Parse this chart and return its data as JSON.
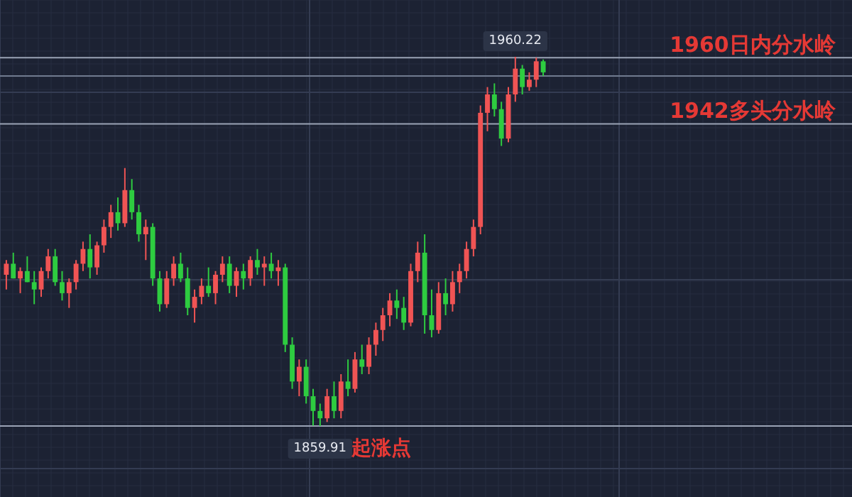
{
  "chart_data": {
    "type": "candlestick",
    "grid": true,
    "categories": [
      null,
      null,
      null,
      null,
      null,
      null,
      null,
      null,
      null,
      null,
      null,
      null,
      null,
      null,
      null,
      null,
      null,
      null,
      null,
      null,
      null,
      null,
      null,
      null,
      null,
      null,
      null,
      null,
      null,
      null,
      null,
      null,
      null,
      null,
      null,
      null,
      null,
      null,
      null,
      null,
      null,
      null,
      null,
      null,
      null,
      null,
      null,
      null,
      null,
      null,
      null,
      null,
      null,
      null,
      null,
      null,
      null,
      null,
      null,
      null,
      null,
      null,
      null,
      null,
      null,
      null,
      null,
      null,
      null,
      null,
      null,
      null,
      null,
      null,
      null,
      null,
      null,
      null
    ],
    "ohlc": [
      [
        1901,
        1905,
        1897,
        1904
      ],
      [
        1904,
        1907,
        1900,
        1900
      ],
      [
        1900,
        1903,
        1896,
        1902
      ],
      [
        1902,
        1906,
        1899,
        1899
      ],
      [
        1899,
        1902,
        1893,
        1897
      ],
      [
        1897,
        1903,
        1895,
        1902
      ],
      [
        1902,
        1908,
        1900,
        1906
      ],
      [
        1906,
        1908,
        1898,
        1899
      ],
      [
        1899,
        1902,
        1894,
        1896
      ],
      [
        1896,
        1900,
        1892,
        1899
      ],
      [
        1899,
        1905,
        1897,
        1904
      ],
      [
        1904,
        1910,
        1902,
        1908
      ],
      [
        1908,
        1912,
        1900,
        1903
      ],
      [
        1903,
        1910,
        1901,
        1909
      ],
      [
        1909,
        1916,
        1907,
        1914
      ],
      [
        1914,
        1920,
        1911,
        1918
      ],
      [
        1918,
        1922,
        1913,
        1915
      ],
      [
        1915,
        1930,
        1914,
        1924
      ],
      [
        1924,
        1927,
        1916,
        1918
      ],
      [
        1918,
        1920,
        1910,
        1912
      ],
      [
        1912,
        1916,
        1905,
        1914
      ],
      [
        1914,
        1915,
        1898,
        1900
      ],
      [
        1900,
        1902,
        1891,
        1893
      ],
      [
        1893,
        1902,
        1892,
        1900
      ],
      [
        1900,
        1906,
        1898,
        1904
      ],
      [
        1904,
        1907,
        1899,
        1900
      ],
      [
        1900,
        1903,
        1890,
        1892
      ],
      [
        1892,
        1897,
        1888,
        1895
      ],
      [
        1895,
        1900,
        1893,
        1898
      ],
      [
        1898,
        1903,
        1895,
        1896
      ],
      [
        1896,
        1902,
        1893,
        1901
      ],
      [
        1901,
        1906,
        1899,
        1904
      ],
      [
        1904,
        1906,
        1896,
        1898
      ],
      [
        1898,
        1903,
        1895,
        1902
      ],
      [
        1902,
        1904,
        1897,
        1900
      ],
      [
        1900,
        1906,
        1898,
        1905
      ],
      [
        1905,
        1908,
        1901,
        1903
      ],
      [
        1903,
        1906,
        1898,
        1904
      ],
      [
        1904,
        1907,
        1900,
        1902
      ],
      [
        1902,
        1905,
        1898,
        1903
      ],
      [
        1903,
        1904,
        1880,
        1882
      ],
      [
        1882,
        1884,
        1870,
        1872
      ],
      [
        1872,
        1878,
        1868,
        1876
      ],
      [
        1876,
        1878,
        1866,
        1868
      ],
      [
        1868,
        1870,
        1860,
        1864
      ],
      [
        1864,
        1866,
        1859.91,
        1862
      ],
      [
        1862,
        1870,
        1861,
        1868
      ],
      [
        1868,
        1872,
        1862,
        1864
      ],
      [
        1864,
        1874,
        1862,
        1872
      ],
      [
        1872,
        1878,
        1868,
        1870
      ],
      [
        1870,
        1880,
        1869,
        1878
      ],
      [
        1878,
        1882,
        1874,
        1876
      ],
      [
        1876,
        1884,
        1874,
        1882
      ],
      [
        1882,
        1888,
        1879,
        1886
      ],
      [
        1886,
        1892,
        1883,
        1890
      ],
      [
        1890,
        1896,
        1887,
        1894
      ],
      [
        1894,
        1897,
        1889,
        1892
      ],
      [
        1892,
        1895,
        1886,
        1888
      ],
      [
        1888,
        1904,
        1887,
        1902
      ],
      [
        1902,
        1910,
        1899,
        1907
      ],
      [
        1907,
        1912,
        1885,
        1890
      ],
      [
        1890,
        1897,
        1884,
        1886
      ],
      [
        1886,
        1899,
        1885,
        1896
      ],
      [
        1896,
        1900,
        1890,
        1893
      ],
      [
        1893,
        1902,
        1891,
        1899
      ],
      [
        1899,
        1904,
        1896,
        1902
      ],
      [
        1902,
        1910,
        1900,
        1908
      ],
      [
        1908,
        1916,
        1906,
        1914
      ],
      [
        1914,
        1947,
        1912,
        1945
      ],
      [
        1945,
        1952,
        1940,
        1950
      ],
      [
        1950,
        1953,
        1944,
        1946
      ],
      [
        1946,
        1948,
        1936,
        1938
      ],
      [
        1938,
        1952,
        1937,
        1950
      ],
      [
        1950,
        1960.22,
        1948,
        1957
      ],
      [
        1957,
        1958,
        1950,
        1952
      ],
      [
        1952,
        1956,
        1951,
        1954
      ],
      [
        1954,
        1960,
        1952,
        1959
      ],
      [
        1959,
        1959.5,
        1955,
        1956
      ]
    ],
    "colors": [
      "#f05454",
      "#2ecc40",
      "#f05454",
      "#2ecc40",
      "#2ecc40",
      "#f05454",
      "#f05454",
      "#2ecc40",
      "#2ecc40",
      "#f05454",
      "#f05454",
      "#f05454",
      "#2ecc40",
      "#f05454",
      "#f05454",
      "#f05454",
      "#2ecc40",
      "#f05454",
      "#2ecc40",
      "#2ecc40",
      "#f05454",
      "#2ecc40",
      "#2ecc40",
      "#f05454",
      "#f05454",
      "#2ecc40",
      "#2ecc40",
      "#f05454",
      "#f05454",
      "#2ecc40",
      "#f05454",
      "#f05454",
      "#2ecc40",
      "#f05454",
      "#2ecc40",
      "#f05454",
      "#2ecc40",
      "#f05454",
      "#2ecc40",
      "#f05454",
      "#2ecc40",
      "#2ecc40",
      "#f05454",
      "#2ecc40",
      "#2ecc40",
      "#2ecc40",
      "#f05454",
      "#2ecc40",
      "#f05454",
      "#2ecc40",
      "#f05454",
      "#2ecc40",
      "#f05454",
      "#f05454",
      "#f05454",
      "#f05454",
      "#2ecc40",
      "#2ecc40",
      "#f05454",
      "#f05454",
      "#2ecc40",
      "#2ecc40",
      "#f05454",
      "#2ecc40",
      "#f05454",
      "#f05454",
      "#f05454",
      "#f05454",
      "#f05454",
      "#f05454",
      "#2ecc40",
      "#2ecc40",
      "#f05454",
      "#f05454",
      "#2ecc40",
      "#f05454",
      "#f05454",
      "#2ecc40"
    ],
    "ref_lines": [
      {
        "axis": "y",
        "value": 1960,
        "label": "1960日内分水岭",
        "color": "#9aa3b5"
      },
      {
        "axis": "y",
        "value": 1955,
        "color": "#6f7a8e"
      },
      {
        "axis": "y",
        "value": 1942,
        "label": "1942多头分水岭",
        "color": "#9aa3b5"
      },
      {
        "axis": "y",
        "value": 1859.91,
        "label": "1859.91",
        "color": "#9aa3b5"
      }
    ],
    "annotations": [
      {
        "text": "1960.22",
        "y": 1960.22
      },
      {
        "text": "起涨点",
        "y": 1859.91
      }
    ]
  }
}
